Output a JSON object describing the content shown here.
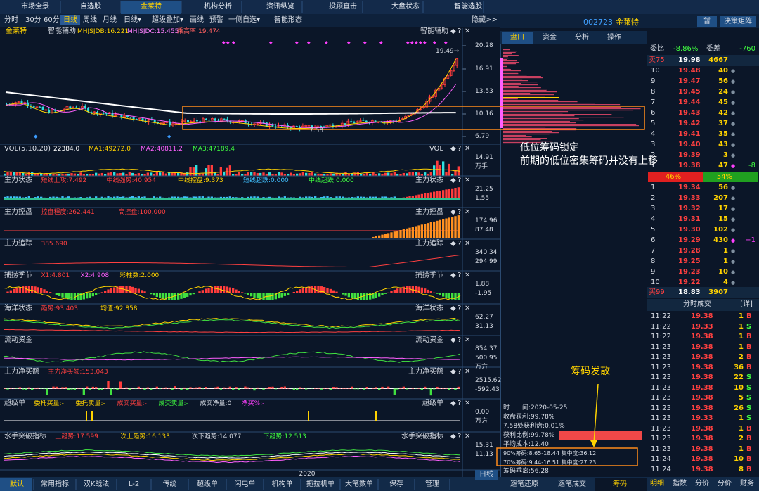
{
  "tabs": [
    "市场全景",
    "自选股",
    "金莱特",
    "机构分析",
    "资讯纵览",
    "投顾直击",
    "大盘状态",
    "智能选股"
  ],
  "toolbar": [
    "分时",
    "30分",
    "60分",
    "日线",
    "周线",
    "月线",
    "日线▾",
    "超级叠加▾",
    "画线",
    "预警",
    "一侧自选▾",
    "智能形态"
  ],
  "hide": "隐藏>>",
  "panel_icons": [
    "◆",
    "?",
    "✕"
  ],
  "main": {
    "name": "金莱特",
    "indicator": "智能辅助",
    "items": [
      "MHJSJDB:16.221",
      "MHJSJDC:15.455",
      "乘高率:19.474"
    ],
    "axis": [
      "20.28",
      "16.91",
      "13.53",
      "10.16",
      "6.79"
    ],
    "high": "19.49→",
    "low": "7.58"
  },
  "panels": [
    {
      "title": "VOL(5,10,20)",
      "items": [
        "22384.0",
        "MA1:49272.0",
        "MA2:40811.2",
        "MA3:47189.4"
      ],
      "right": "VOL",
      "axis": [
        "14.91",
        "万手"
      ]
    },
    {
      "title": "主力状态",
      "items": [
        "短线上攻:7.492",
        "中线强势:40.954",
        "中线控盘:9.373",
        "短线超跌:0.000",
        "中线超跌:0.000"
      ],
      "right": "主力状态",
      "axis": [
        "21.25",
        "1.55"
      ]
    },
    {
      "title": "主力控盘",
      "items": [
        "控盘程度:262.441",
        "高控盘:100.000"
      ],
      "right": "主力控盘",
      "axis": [
        "174.96",
        "87.48"
      ]
    },
    {
      "title": "主力追踪",
      "items": [
        "385.690"
      ],
      "right": "主力追踪",
      "axis": [
        "340.34",
        "294.99"
      ]
    },
    {
      "title": "捕捞季节",
      "items": [
        "X1:4.801",
        "X2:4.908",
        "彩柱数:2.000"
      ],
      "right": "捕捞季节",
      "axis": [
        "1.88",
        "-1.95"
      ]
    },
    {
      "title": "海洋状态",
      "items": [
        "趋势:93.403",
        "均值:92.858"
      ],
      "right": "海洋状态",
      "axis": [
        "62.27",
        "31.13"
      ]
    },
    {
      "title": "流动资金",
      "items": [],
      "right": "流动资金",
      "axis": [
        "854.37",
        "500.95",
        "万方"
      ]
    },
    {
      "title": "主力净买额",
      "items": [
        "主力净买额:153.043"
      ],
      "right": "主力净买额",
      "axis": [
        "2515.62",
        "-592.43"
      ]
    },
    {
      "title": "超级单",
      "items": [
        "委托买量:-",
        "委托卖量:-",
        "成交买量:-",
        "成交卖量:-",
        "成交净量:0",
        "净买%:-"
      ],
      "right": "超级单",
      "axis": [
        "0.00",
        "万方"
      ]
    },
    {
      "title": "水手突破指标",
      "items": [
        "上趋势:17.599",
        "次上趋势:16.133",
        "次下趋势:14.077",
        "下趋势:12.513"
      ],
      "right": "水手突破指标",
      "axis": [
        "15.31",
        "11.13"
      ]
    }
  ],
  "x_label": "2020",
  "stock": {
    "code": "002723",
    "name": "金莱特",
    "buttons": [
      "暂",
      "决策矩阵"
    ]
  },
  "side_tabs": [
    "盘口",
    "资金",
    "分析",
    "操作"
  ],
  "order_book": {
    "ratio_label": "委比",
    "ratio": "-8.86%",
    "diff_label": "委差",
    "diff": "-760",
    "top": [
      "卖75",
      "19.98",
      "4667"
    ],
    "sell": [
      [
        "10",
        "19.48",
        "40",
        "●"
      ],
      [
        "9",
        "19.47",
        "56",
        "●"
      ],
      [
        "8",
        "19.45",
        "24",
        "●"
      ],
      [
        "7",
        "19.44",
        "45",
        "●"
      ],
      [
        "6",
        "19.43",
        "42",
        "●"
      ],
      [
        "5",
        "19.42",
        "37",
        "●"
      ],
      [
        "4",
        "19.41",
        "35",
        "●"
      ],
      [
        "3",
        "19.40",
        "43",
        "●"
      ],
      [
        "2",
        "19.39",
        "3",
        "●"
      ],
      [
        "1",
        "19.38",
        "47",
        "●",
        "-8"
      ]
    ],
    "split": [
      "46%",
      "54%"
    ],
    "buy": [
      [
        "1",
        "19.34",
        "56",
        "●"
      ],
      [
        "2",
        "19.33",
        "207",
        "●"
      ],
      [
        "3",
        "19.32",
        "17",
        "●"
      ],
      [
        "4",
        "19.31",
        "15",
        "●"
      ],
      [
        "5",
        "19.30",
        "102",
        "●"
      ],
      [
        "6",
        "19.29",
        "430",
        "●",
        "+1"
      ],
      [
        "7",
        "19.28",
        "1",
        "●"
      ],
      [
        "8",
        "19.25",
        "1",
        "●"
      ],
      [
        "9",
        "19.23",
        "10",
        "●"
      ],
      [
        "10",
        "19.22",
        "4",
        "●"
      ]
    ],
    "bottom": [
      "买99",
      "18.83",
      "3907"
    ]
  },
  "trades": {
    "title": "分时成交",
    "detail": "[详]",
    "rows": [
      [
        "11:22",
        "19.38",
        "1",
        "B"
      ],
      [
        "11:22",
        "19.33",
        "1",
        "S"
      ],
      [
        "11:22",
        "19.38",
        "1",
        "B"
      ],
      [
        "11:23",
        "19.38",
        "1",
        "B"
      ],
      [
        "11:23",
        "19.38",
        "2",
        "B"
      ],
      [
        "11:23",
        "19.38",
        "36",
        "B"
      ],
      [
        "11:23",
        "19.38",
        "22",
        "S"
      ],
      [
        "11:23",
        "19.38",
        "10",
        "S"
      ],
      [
        "11:23",
        "19.38",
        "5",
        "S"
      ],
      [
        "11:23",
        "19.38",
        "26",
        "S"
      ],
      [
        "11:23",
        "19.33",
        "1",
        "S"
      ],
      [
        "11:23",
        "19.38",
        "1",
        "B"
      ],
      [
        "11:23",
        "19.38",
        "2",
        "B"
      ],
      [
        "11:23",
        "19.38",
        "1",
        "B"
      ],
      [
        "11:24",
        "19.38",
        "10",
        "B"
      ],
      [
        "11:24",
        "19.38",
        "8",
        "B"
      ]
    ]
  },
  "chip_info": [
    "时　　间:2020-05-25",
    "收盘获利:99.78%",
    "7.58处获利盘:0.01%",
    "获利比例:99.78%",
    "平均成本:12.40",
    "90%筹码:8.65-18.44 集中度:36.12",
    "70%筹码:9.44-16.51 集中度:27.23",
    "筹码乖离:56.28"
  ],
  "annotations": [
    "低位筹码锁定",
    "前期的低位密集筹码并没有上移",
    "筹码发散"
  ],
  "bottom_tabs": [
    "默认",
    "常用指标",
    "双K战法",
    "L-2",
    "传统",
    "超级单",
    "闪电单",
    "机构单",
    "拖拉机单",
    "大笔数单",
    "保存",
    "管理"
  ],
  "period": "日线",
  "chip_tabs": [
    "逐笔还原",
    "逐笔成交",
    "筹码"
  ],
  "right_tabs": [
    "明细",
    "指数",
    "分价",
    "分价",
    "财务"
  ]
}
